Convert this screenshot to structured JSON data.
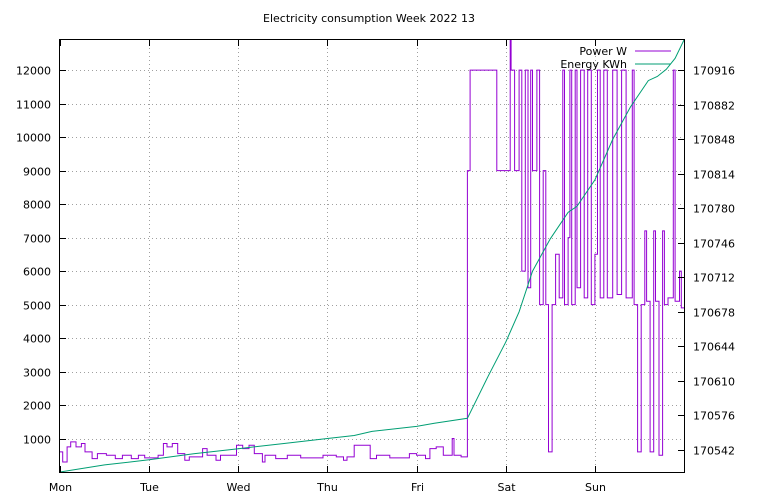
{
  "chart_data": {
    "type": "line",
    "title": "Electricity consumption Week 2022 13",
    "xlabel": "",
    "ylabel": "",
    "y2label": "",
    "x_unit": "day",
    "x_range": [
      0,
      7
    ],
    "x_ticks": [
      0,
      1,
      2,
      3,
      4,
      5,
      6
    ],
    "x_tick_labels": [
      "Mon",
      "Tue",
      "Wed",
      "Thu",
      "Fri",
      "Sat",
      "Sun"
    ],
    "ylim": [
      0,
      12900
    ],
    "y_ticks": [
      1000,
      2000,
      3000,
      4000,
      5000,
      6000,
      7000,
      8000,
      9000,
      10000,
      11000,
      12000
    ],
    "y2lim": [
      170520,
      170946
    ],
    "y2_ticks": [
      170542,
      170576,
      170610,
      170644,
      170678,
      170712,
      170746,
      170780,
      170814,
      170848,
      170882,
      170916
    ],
    "grid": true,
    "legend_position": "top-right",
    "colors": {
      "power": "#9400d3",
      "energy": "#009e73"
    },
    "series": [
      {
        "name": "Power W",
        "axis": "y",
        "points": [
          [
            0,
            600
          ],
          [
            0.03,
            600
          ],
          [
            0.03,
            300
          ],
          [
            0.08,
            300
          ],
          [
            0.08,
            750
          ],
          [
            0.12,
            750
          ],
          [
            0.12,
            900
          ],
          [
            0.18,
            900
          ],
          [
            0.18,
            750
          ],
          [
            0.24,
            750
          ],
          [
            0.24,
            850
          ],
          [
            0.28,
            850
          ],
          [
            0.28,
            600
          ],
          [
            0.36,
            600
          ],
          [
            0.36,
            400
          ],
          [
            0.42,
            400
          ],
          [
            0.42,
            550
          ],
          [
            0.52,
            550
          ],
          [
            0.52,
            500
          ],
          [
            0.62,
            500
          ],
          [
            0.62,
            400
          ],
          [
            0.7,
            400
          ],
          [
            0.7,
            500
          ],
          [
            0.8,
            500
          ],
          [
            0.8,
            400
          ],
          [
            0.88,
            400
          ],
          [
            0.88,
            500
          ],
          [
            0.95,
            500
          ],
          [
            0.95,
            420
          ],
          [
            1.1,
            420
          ],
          [
            1.1,
            500
          ],
          [
            1.16,
            500
          ],
          [
            1.16,
            850
          ],
          [
            1.2,
            850
          ],
          [
            1.2,
            750
          ],
          [
            1.26,
            750
          ],
          [
            1.26,
            850
          ],
          [
            1.32,
            850
          ],
          [
            1.32,
            550
          ],
          [
            1.4,
            550
          ],
          [
            1.4,
            350
          ],
          [
            1.45,
            350
          ],
          [
            1.45,
            450
          ],
          [
            1.6,
            450
          ],
          [
            1.6,
            700
          ],
          [
            1.65,
            700
          ],
          [
            1.65,
            500
          ],
          [
            1.75,
            500
          ],
          [
            1.75,
            350
          ],
          [
            1.8,
            350
          ],
          [
            1.8,
            500
          ],
          [
            1.98,
            500
          ],
          [
            1.98,
            800
          ],
          [
            2.05,
            800
          ],
          [
            2.05,
            700
          ],
          [
            2.12,
            700
          ],
          [
            2.12,
            800
          ],
          [
            2.18,
            800
          ],
          [
            2.18,
            550
          ],
          [
            2.27,
            550
          ],
          [
            2.27,
            300
          ],
          [
            2.3,
            300
          ],
          [
            2.3,
            500
          ],
          [
            2.42,
            500
          ],
          [
            2.42,
            400
          ],
          [
            2.55,
            400
          ],
          [
            2.55,
            500
          ],
          [
            2.7,
            500
          ],
          [
            2.7,
            420
          ],
          [
            2.95,
            420
          ],
          [
            2.95,
            500
          ],
          [
            3.1,
            500
          ],
          [
            3.1,
            450
          ],
          [
            3.18,
            450
          ],
          [
            3.18,
            350
          ],
          [
            3.22,
            350
          ],
          [
            3.22,
            450
          ],
          [
            3.3,
            450
          ],
          [
            3.3,
            800
          ],
          [
            3.48,
            800
          ],
          [
            3.48,
            400
          ],
          [
            3.55,
            400
          ],
          [
            3.55,
            500
          ],
          [
            3.7,
            500
          ],
          [
            3.7,
            420
          ],
          [
            3.92,
            420
          ],
          [
            3.92,
            550
          ],
          [
            4.0,
            550
          ],
          [
            4.0,
            500
          ],
          [
            4.1,
            500
          ],
          [
            4.1,
            400
          ],
          [
            4.15,
            400
          ],
          [
            4.15,
            700
          ],
          [
            4.22,
            700
          ],
          [
            4.22,
            750
          ],
          [
            4.3,
            750
          ],
          [
            4.3,
            500
          ],
          [
            4.4,
            500
          ],
          [
            4.4,
            1000
          ],
          [
            4.42,
            1000
          ],
          [
            4.42,
            500
          ],
          [
            4.5,
            500
          ],
          [
            4.5,
            450
          ],
          [
            4.57,
            450
          ],
          [
            4.57,
            9000
          ],
          [
            4.6,
            9000
          ],
          [
            4.6,
            12000
          ],
          [
            4.9,
            12000
          ],
          [
            4.9,
            9000
          ],
          [
            5.05,
            9000
          ],
          [
            5.05,
            12900
          ],
          [
            5.06,
            12900
          ],
          [
            5.06,
            12000
          ],
          [
            5.1,
            12000
          ],
          [
            5.1,
            9000
          ],
          [
            5.15,
            9000
          ],
          [
            5.15,
            12000
          ],
          [
            5.18,
            12000
          ],
          [
            5.18,
            6000
          ],
          [
            5.22,
            6000
          ],
          [
            5.22,
            12000
          ],
          [
            5.25,
            12000
          ],
          [
            5.25,
            5500
          ],
          [
            5.28,
            5500
          ],
          [
            5.28,
            12000
          ],
          [
            5.3,
            12000
          ],
          [
            5.3,
            9000
          ],
          [
            5.35,
            9000
          ],
          [
            5.35,
            12000
          ],
          [
            5.38,
            12000
          ],
          [
            5.38,
            5000
          ],
          [
            5.42,
            5000
          ],
          [
            5.42,
            9000
          ],
          [
            5.45,
            9000
          ],
          [
            5.45,
            5000
          ],
          [
            5.48,
            5000
          ],
          [
            5.48,
            600
          ],
          [
            5.52,
            600
          ],
          [
            5.52,
            5000
          ],
          [
            5.56,
            5000
          ],
          [
            5.56,
            6500
          ],
          [
            5.6,
            6500
          ],
          [
            5.6,
            5200
          ],
          [
            5.64,
            5200
          ],
          [
            5.64,
            12000
          ],
          [
            5.66,
            12000
          ],
          [
            5.66,
            5000
          ],
          [
            5.7,
            5000
          ],
          [
            5.7,
            7000
          ],
          [
            5.72,
            7000
          ],
          [
            5.72,
            12000
          ],
          [
            5.74,
            12000
          ],
          [
            5.74,
            5000
          ],
          [
            5.78,
            5000
          ],
          [
            5.78,
            12000
          ],
          [
            5.8,
            12000
          ],
          [
            5.8,
            5500
          ],
          [
            5.84,
            5500
          ],
          [
            5.84,
            12000
          ],
          [
            5.88,
            12000
          ],
          [
            5.88,
            5200
          ],
          [
            5.92,
            5200
          ],
          [
            5.92,
            12000
          ],
          [
            5.96,
            12000
          ],
          [
            5.96,
            5000
          ],
          [
            6.0,
            5000
          ],
          [
            6.0,
            6500
          ],
          [
            6.03,
            6500
          ],
          [
            6.03,
            12000
          ],
          [
            6.06,
            12000
          ],
          [
            6.06,
            5200
          ],
          [
            6.1,
            5200
          ],
          [
            6.1,
            12000
          ],
          [
            6.14,
            12000
          ],
          [
            6.14,
            5200
          ],
          [
            6.2,
            5200
          ],
          [
            6.2,
            12000
          ],
          [
            6.25,
            12000
          ],
          [
            6.25,
            5300
          ],
          [
            6.3,
            5300
          ],
          [
            6.3,
            12000
          ],
          [
            6.35,
            12000
          ],
          [
            6.35,
            5200
          ],
          [
            6.42,
            5200
          ],
          [
            6.42,
            12000
          ],
          [
            6.44,
            12000
          ],
          [
            6.44,
            5000
          ],
          [
            6.48,
            5000
          ],
          [
            6.48,
            600
          ],
          [
            6.52,
            600
          ],
          [
            6.52,
            5000
          ],
          [
            6.56,
            5000
          ],
          [
            6.56,
            7200
          ],
          [
            6.58,
            7200
          ],
          [
            6.58,
            5100
          ],
          [
            6.62,
            5100
          ],
          [
            6.62,
            600
          ],
          [
            6.66,
            600
          ],
          [
            6.66,
            7200
          ],
          [
            6.68,
            7200
          ],
          [
            6.68,
            5100
          ],
          [
            6.72,
            5100
          ],
          [
            6.72,
            500
          ],
          [
            6.76,
            500
          ],
          [
            6.76,
            7200
          ],
          [
            6.78,
            7200
          ],
          [
            6.78,
            5000
          ],
          [
            6.82,
            5000
          ],
          [
            6.82,
            5200
          ],
          [
            6.88,
            5200
          ],
          [
            6.88,
            12000
          ],
          [
            6.9,
            12000
          ],
          [
            6.9,
            5100
          ],
          [
            6.95,
            5100
          ],
          [
            6.95,
            6000
          ],
          [
            6.97,
            6000
          ],
          [
            6.97,
            4900
          ],
          [
            7.0,
            4900
          ]
        ]
      },
      {
        "name": "Energy KWh",
        "axis": "y2",
        "points": [
          [
            0,
            170520
          ],
          [
            0.5,
            170527
          ],
          [
            1.0,
            170532
          ],
          [
            1.5,
            170538
          ],
          [
            2.0,
            170543
          ],
          [
            2.5,
            170548
          ],
          [
            3.0,
            170553
          ],
          [
            3.3,
            170556
          ],
          [
            3.5,
            170560
          ],
          [
            4.0,
            170565
          ],
          [
            4.2,
            170568
          ],
          [
            4.57,
            170573
          ],
          [
            4.8,
            170614
          ],
          [
            5.0,
            170648
          ],
          [
            5.15,
            170678
          ],
          [
            5.3,
            170718
          ],
          [
            5.5,
            170750
          ],
          [
            5.7,
            170776
          ],
          [
            5.8,
            170782
          ],
          [
            6.0,
            170808
          ],
          [
            6.2,
            170848
          ],
          [
            6.4,
            170880
          ],
          [
            6.6,
            170906
          ],
          [
            6.7,
            170910
          ],
          [
            6.8,
            170917
          ],
          [
            6.9,
            170928
          ],
          [
            7.0,
            170946
          ]
        ]
      }
    ]
  }
}
